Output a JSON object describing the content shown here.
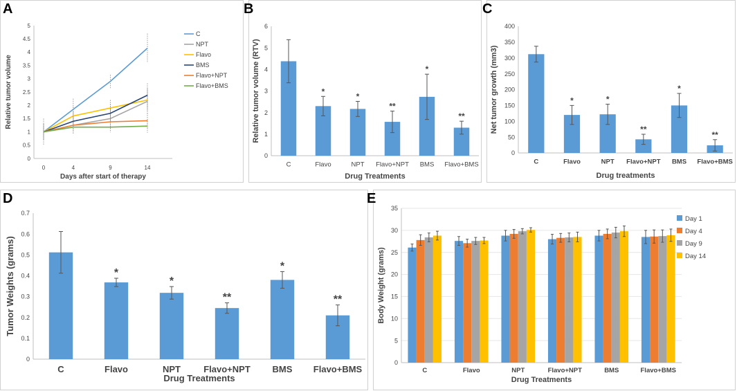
{
  "colors": {
    "bar": "#5b9bd5",
    "axis": "#bfbfbf",
    "text": "#444444",
    "day1": "#5b9bd5",
    "day4": "#ed7d31",
    "day9": "#a5a5a5",
    "day14": "#ffc000"
  },
  "panel_labels": [
    "A",
    "B",
    "C",
    "D",
    "E"
  ],
  "chart_data": [
    {
      "id": "A",
      "type": "line",
      "title": "",
      "xlabel": "Days after start of therapy",
      "ylabel": "Relative tumor volume",
      "x": [
        0,
        4,
        9,
        14
      ],
      "x_tick_labels": [
        "0",
        "4",
        "9",
        "14"
      ],
      "ylim": [
        0,
        5
      ],
      "y_ticks": [
        0,
        0.5,
        1,
        1.5,
        2,
        2.5,
        3,
        3.5,
        4,
        4.5,
        5
      ],
      "y_tick_labels": [
        "0",
        "0.5",
        "1",
        "1.5",
        "2",
        "2.5",
        "3",
        "3.5",
        "4",
        "4.5",
        "5"
      ],
      "legend_position": "top-right",
      "series": [
        {
          "name": "C",
          "color": "#5b9bd5",
          "values": [
            1,
            1.85,
            2.9,
            4.15
          ],
          "errors": [
            0.5,
            0.4,
            0.25,
            0.55
          ]
        },
        {
          "name": "NPT",
          "color": "#a5a5a5",
          "values": [
            1,
            1.25,
            1.5,
            2.15
          ],
          "errors": [
            0.3,
            0.35,
            0.35,
            0.5
          ]
        },
        {
          "name": "Flavo",
          "color": "#ffc000",
          "values": [
            1,
            1.6,
            1.9,
            2.2
          ],
          "errors": [
            0.3,
            0.35,
            0.3,
            0.4
          ]
        },
        {
          "name": "BMS",
          "color": "#264478",
          "values": [
            1,
            1.4,
            1.7,
            2.38
          ],
          "errors": [
            0.3,
            0.35,
            0.35,
            0.45
          ]
        },
        {
          "name": "Flavo+NPT",
          "color": "#ed7d31",
          "values": [
            1,
            1.25,
            1.38,
            1.42
          ],
          "errors": [
            0.2,
            0.2,
            0.25,
            0.3
          ]
        },
        {
          "name": "Flavo+BMS",
          "color": "#70ad47",
          "values": [
            1,
            1.18,
            1.18,
            1.22
          ],
          "errors": [
            0.15,
            0.2,
            0.2,
            0.25
          ]
        }
      ]
    },
    {
      "id": "B",
      "type": "bar",
      "title": "",
      "xlabel": "Drug Treatments",
      "ylabel": "Relative tumor volume (RTV)",
      "categories": [
        "C",
        "Flavo",
        "NPT",
        "Flavo+NPT",
        "BMS",
        "Flavo+BMS"
      ],
      "values": [
        4.38,
        2.3,
        2.17,
        1.57,
        2.73,
        1.3
      ],
      "errors": [
        1.0,
        0.45,
        0.35,
        0.5,
        1.05,
        0.3
      ],
      "significance": [
        "",
        "*",
        "*",
        "**",
        "*",
        "**"
      ],
      "ylim": [
        0,
        6
      ],
      "y_ticks": [
        0,
        1,
        2,
        3,
        4,
        5,
        6
      ],
      "y_tick_labels": [
        "0",
        "1",
        "2",
        "3",
        "4",
        "5",
        "6"
      ]
    },
    {
      "id": "C",
      "type": "bar",
      "title": "",
      "xlabel": "Drug treatments",
      "ylabel": "Net tumor growth (mm3)",
      "categories": [
        "C",
        "Flavo",
        "NPT",
        "Flavo+NPT",
        "BMS",
        "Flavo+BMS"
      ],
      "values": [
        312,
        120,
        122,
        43,
        150,
        24
      ],
      "errors": [
        25,
        30,
        32,
        16,
        38,
        18
      ],
      "significance": [
        "",
        "*",
        "*",
        "**",
        "*",
        "**"
      ],
      "ylim": [
        0,
        400
      ],
      "y_ticks": [
        0,
        50,
        100,
        150,
        200,
        250,
        300,
        350,
        400
      ],
      "y_tick_labels": [
        "0",
        "50",
        "100",
        "150",
        "200",
        "250",
        "300",
        "350",
        "400"
      ]
    },
    {
      "id": "D",
      "type": "bar",
      "title": "",
      "xlabel": "Drug Treatments",
      "ylabel": "Tumor Weights (grams)",
      "categories": [
        "C",
        "Flavo",
        "NPT",
        "Flavo+NPT",
        "BMS",
        "Flavo+BMS"
      ],
      "values": [
        0.512,
        0.368,
        0.318,
        0.245,
        0.38,
        0.21
      ],
      "errors": [
        0.1,
        0.02,
        0.03,
        0.025,
        0.04,
        0.05
      ],
      "significance": [
        "",
        "*",
        "*",
        "**",
        "*",
        "**"
      ],
      "ylim": [
        0,
        0.7
      ],
      "y_ticks": [
        0,
        0.1,
        0.2,
        0.3,
        0.4,
        0.5,
        0.6,
        0.7
      ],
      "y_tick_labels": [
        "0",
        "0.1",
        "0.2",
        "0.3",
        "0.4",
        "0.5",
        "0.6",
        "0.7"
      ]
    },
    {
      "id": "E",
      "type": "bar",
      "title": "",
      "xlabel": "Drug Treatments",
      "ylabel": "Body Weight (grams)",
      "categories": [
        "C",
        "Flavo",
        "NPT",
        "Flavo+NPT",
        "BMS",
        "Flavo+BMS"
      ],
      "legend_position": "top-right",
      "series": [
        {
          "name": "Day 1",
          "color": "#5b9bd5",
          "values": [
            26.1,
            27.6,
            28.8,
            28.0,
            28.8,
            28.5
          ],
          "errors": [
            0.8,
            1.0,
            1.2,
            1.1,
            1.2,
            1.5
          ]
        },
        {
          "name": "Day 4",
          "color": "#ed7d31",
          "values": [
            27.8,
            27.1,
            29.2,
            28.3,
            29.2,
            28.6
          ],
          "errors": [
            1.2,
            0.9,
            1.0,
            1.0,
            1.1,
            1.5
          ]
        },
        {
          "name": "Day 9",
          "color": "#a5a5a5",
          "values": [
            28.4,
            27.6,
            29.8,
            28.4,
            29.5,
            28.7
          ],
          "errors": [
            1.0,
            0.8,
            0.6,
            1.0,
            1.2,
            1.4
          ]
        },
        {
          "name": "Day 14",
          "color": "#ffc000",
          "values": [
            28.8,
            27.7,
            30.1,
            28.5,
            29.8,
            28.9
          ],
          "errors": [
            1.0,
            0.7,
            0.5,
            1.1,
            1.2,
            1.4
          ]
        }
      ],
      "ylim": [
        0,
        35
      ],
      "y_ticks": [
        0,
        5,
        10,
        15,
        20,
        25,
        30,
        35
      ],
      "y_tick_labels": [
        "0",
        "5",
        "10",
        "15",
        "20",
        "25",
        "30",
        "35"
      ]
    }
  ]
}
